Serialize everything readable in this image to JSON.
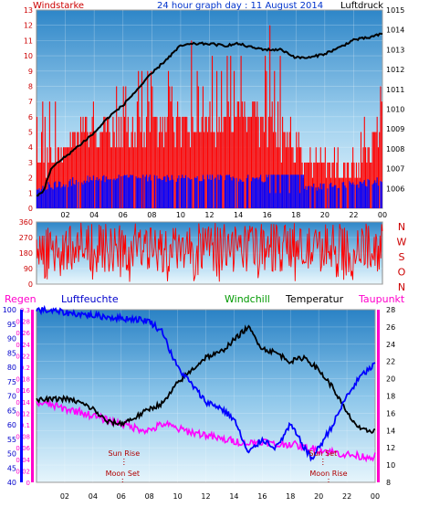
{
  "header": {
    "wind_label": "Windstarke",
    "title": "24 hour graph day : 11 August 2014",
    "pressure_label": "Luftdruck"
  },
  "legend": {
    "rain": "Regen",
    "humidity": "Luftfeuchte",
    "windchill": "Windchill",
    "temperature": "Temperatur",
    "dewpoint": "Taupunkt"
  },
  "colors": {
    "wind": "#ff0000",
    "gust": "#0000ff",
    "pressure": "#000000",
    "direction": "#ff0000",
    "humidity": "#0000ff",
    "temperature": "#000000",
    "windchill": "#ff00ff",
    "rain": "#ff00cc",
    "astro": "#b00000"
  },
  "chart_data": [
    {
      "type": "bar",
      "name": "wind",
      "x_ticks": [
        "02",
        "04",
        "06",
        "08",
        "10",
        "12",
        "14",
        "16",
        "18",
        "20",
        "22",
        "00"
      ],
      "x_range": [
        0,
        24
      ],
      "wind_ylim": [
        0,
        13
      ],
      "wind_ticks": [
        "0",
        "1",
        "2",
        "3",
        "4",
        "5",
        "6",
        "7",
        "8",
        "9",
        "10",
        "11",
        "12",
        "13"
      ],
      "pressure_ylim": [
        1005,
        1015
      ],
      "pressure_ticks": [
        "1006",
        "1007",
        "1008",
        "1009",
        "1010",
        "1011",
        "1012",
        "1013",
        "1014",
        "1015"
      ],
      "wind_series": {
        "name": "Windstarke",
        "baseline": [
          [
            0,
            2
          ],
          [
            1.6,
            3.5
          ],
          [
            3,
            4.5
          ],
          [
            6,
            4.5
          ],
          [
            9,
            5
          ],
          [
            12,
            5
          ],
          [
            15,
            5.5
          ],
          [
            16.5,
            4
          ],
          [
            18,
            3
          ],
          [
            20,
            2.5
          ],
          [
            22,
            2
          ],
          [
            24,
            4
          ]
        ],
        "gusts_max": [
          [
            0,
            6
          ],
          [
            1,
            7.5
          ],
          [
            2,
            7
          ],
          [
            4,
            7
          ],
          [
            6,
            9
          ],
          [
            9,
            9
          ],
          [
            10.5,
            11
          ],
          [
            12,
            10
          ],
          [
            14,
            11
          ],
          [
            16,
            12.5
          ],
          [
            17,
            10
          ],
          [
            18,
            5
          ],
          [
            20,
            3.5
          ],
          [
            22,
            3.5
          ],
          [
            23.5,
            8
          ]
        ]
      },
      "lower_series": {
        "name": "gust",
        "level": [
          [
            0,
            1.3
          ],
          [
            4,
            2
          ],
          [
            8,
            2
          ],
          [
            12,
            2
          ],
          [
            16,
            2
          ],
          [
            18,
            1.2
          ],
          [
            24,
            1.8
          ]
        ]
      },
      "pressure_series": {
        "name": "Luftdruck",
        "points": [
          [
            0,
            1005.6
          ],
          [
            0.5,
            1005.9
          ],
          [
            1,
            1007.0
          ],
          [
            2,
            1007.6
          ],
          [
            3,
            1008.2
          ],
          [
            4,
            1008.8
          ],
          [
            5,
            1009.6
          ],
          [
            6,
            1010.2
          ],
          [
            7,
            1011.0
          ],
          [
            8,
            1011.8
          ],
          [
            9,
            1012.5
          ],
          [
            10,
            1013.2
          ],
          [
            11,
            1013.3
          ],
          [
            12,
            1013.3
          ],
          [
            13,
            1013.2
          ],
          [
            14,
            1013.3
          ],
          [
            15,
            1013.1
          ],
          [
            16,
            1013.0
          ],
          [
            17,
            1013.0
          ],
          [
            18,
            1012.6
          ],
          [
            19,
            1012.6
          ],
          [
            20,
            1012.8
          ],
          [
            21,
            1013.1
          ],
          [
            22,
            1013.5
          ],
          [
            23,
            1013.6
          ],
          [
            24,
            1013.8
          ]
        ]
      }
    },
    {
      "type": "bar",
      "name": "wind-direction",
      "y_ticks": [
        "0",
        "90",
        "180",
        "270",
        "360"
      ],
      "ylim": [
        0,
        360
      ],
      "side_labels": [
        "N",
        "W",
        "S",
        "O",
        "N"
      ],
      "range_band": [
        [
          0,
          70
        ],
        [
          24,
          330
        ]
      ]
    },
    {
      "type": "line",
      "name": "climate",
      "x_ticks": [
        "02",
        "04",
        "06",
        "08",
        "10",
        "12",
        "14",
        "16",
        "18",
        "20",
        "22",
        "00"
      ],
      "humidity_ticks": [
        "40",
        "45",
        "50",
        "55",
        "60",
        "65",
        "70",
        "75",
        "80",
        "85",
        "90",
        "95",
        "100"
      ],
      "humidity_ylim": [
        40,
        100
      ],
      "rain_ticks": [
        "0",
        "0.02",
        "0.04",
        "0.06",
        "0.08",
        "0.1",
        "0.12",
        "0.14",
        "0.16",
        "0.18",
        "0.2",
        "0.22",
        "0.24",
        "0.26",
        "0.28",
        "0.3"
      ],
      "rain_ylim": [
        0,
        0.3
      ],
      "temp_ticks": [
        "8",
        "10",
        "12",
        "14",
        "16",
        "18",
        "20",
        "22",
        "24",
        "26",
        "28"
      ],
      "temp_ylim": [
        8,
        28
      ],
      "humidity": [
        [
          0,
          100
        ],
        [
          1,
          99.6
        ],
        [
          2,
          99
        ],
        [
          3,
          98.5
        ],
        [
          4,
          98
        ],
        [
          5,
          97.5
        ],
        [
          6,
          97
        ],
        [
          7,
          96.8
        ],
        [
          8,
          96
        ],
        [
          9,
          92
        ],
        [
          9.5,
          85
        ],
        [
          10,
          80
        ],
        [
          11,
          74
        ],
        [
          12,
          68
        ],
        [
          13,
          66
        ],
        [
          14,
          62
        ],
        [
          15,
          50
        ],
        [
          16,
          55
        ],
        [
          17,
          52
        ],
        [
          18,
          60
        ],
        [
          19,
          52
        ],
        [
          19.5,
          48
        ],
        [
          20,
          52
        ],
        [
          21,
          60
        ],
        [
          22,
          70
        ],
        [
          23,
          77
        ],
        [
          24,
          81
        ]
      ],
      "temperature": [
        [
          0,
          17.5
        ],
        [
          1,
          17.6
        ],
        [
          2,
          17.7
        ],
        [
          3,
          17.3
        ],
        [
          4,
          16.5
        ],
        [
          5,
          15
        ],
        [
          6,
          14.8
        ],
        [
          7,
          15.5
        ],
        [
          8,
          16.5
        ],
        [
          9,
          17.2
        ],
        [
          10,
          19.5
        ],
        [
          11,
          21
        ],
        [
          12,
          22.5
        ],
        [
          13,
          23
        ],
        [
          14,
          24.5
        ],
        [
          15,
          26
        ],
        [
          16,
          23.5
        ],
        [
          17,
          23
        ],
        [
          18,
          22
        ],
        [
          19,
          22.5
        ],
        [
          20,
          21
        ],
        [
          21,
          19
        ],
        [
          22,
          16
        ],
        [
          23,
          14
        ],
        [
          24,
          14
        ]
      ],
      "windchill": [
        [
          0,
          17.2
        ],
        [
          1,
          17
        ],
        [
          2,
          16.5
        ],
        [
          3,
          16.2
        ],
        [
          4,
          15.7
        ],
        [
          5,
          15.2
        ],
        [
          6,
          14.8
        ],
        [
          7,
          14.3
        ],
        [
          8,
          14
        ],
        [
          9,
          14.8
        ],
        [
          10,
          14.2
        ],
        [
          11,
          13.8
        ],
        [
          12,
          13.5
        ],
        [
          13,
          13
        ],
        [
          14,
          12.8
        ],
        [
          15,
          12.5
        ],
        [
          16,
          12.8
        ],
        [
          17,
          12.3
        ],
        [
          18,
          12.5
        ],
        [
          19,
          12
        ],
        [
          20,
          11.8
        ],
        [
          21,
          11.5
        ],
        [
          22,
          11.2
        ],
        [
          23,
          11
        ],
        [
          24,
          11
        ]
      ],
      "rain_total": 0,
      "annotations": [
        {
          "text": "Sun Rise",
          "hour": 6.2
        },
        {
          "text": "Sun Set",
          "hour": 20.3
        },
        {
          "text": "Moon Set",
          "hour": 6.1
        },
        {
          "text": "Moon Rise",
          "hour": 20.7
        }
      ]
    }
  ]
}
